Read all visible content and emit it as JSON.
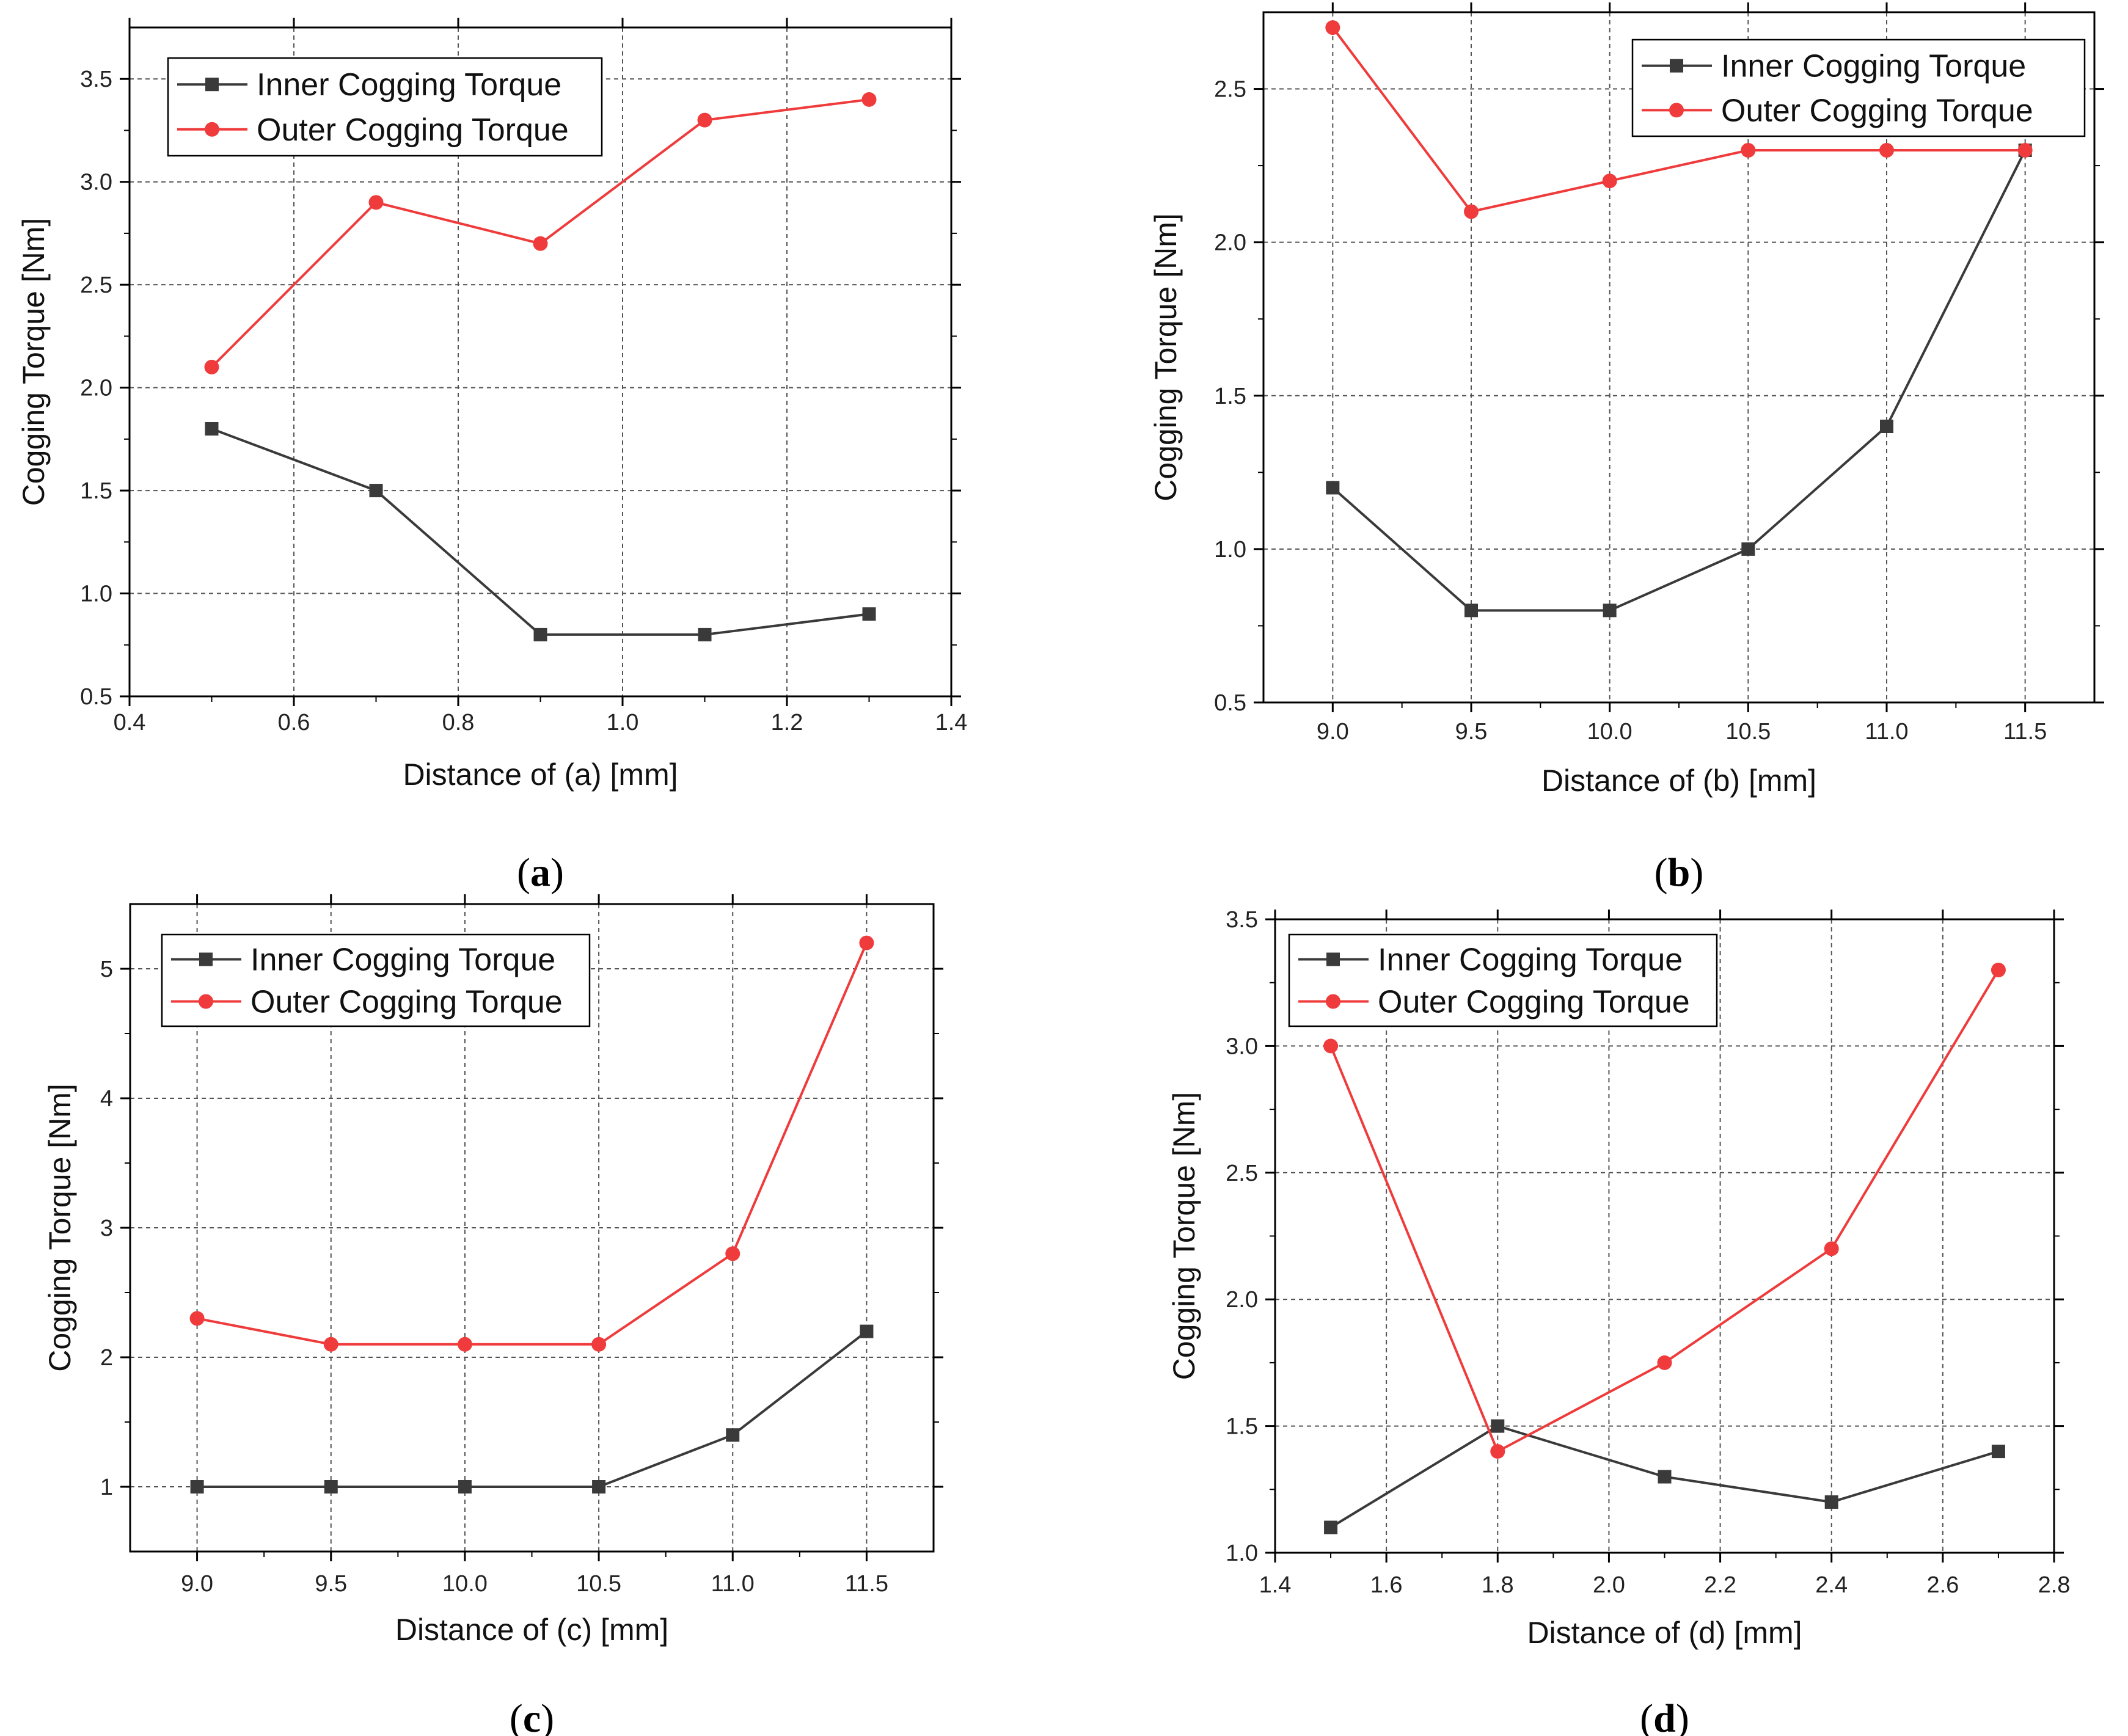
{
  "colors": {
    "inner": "#3a3a3a",
    "outer": "#ef3b3b",
    "grid": "#555555",
    "frame": "#000000"
  },
  "chart_data": [
    {
      "type": "line",
      "caption_letter": "a",
      "xlabel": "Distance of (a) [mm]",
      "ylabel": "Cogging Torque [Nm]",
      "xlim": [
        0.4,
        1.4
      ],
      "ylim": [
        0.5,
        3.75
      ],
      "xticks": [
        0.4,
        0.6,
        0.8,
        1.0,
        1.2,
        1.4
      ],
      "xtick_labels": [
        "0.4",
        "0.6",
        "0.8",
        "1.0",
        "1.2",
        "1.4"
      ],
      "yticks": [
        0.5,
        1.0,
        1.5,
        2.0,
        2.5,
        3.0,
        3.5
      ],
      "ytick_labels": [
        "0.5",
        "1.0",
        "1.5",
        "2.0",
        "2.5",
        "3.0",
        "3.5"
      ],
      "legend_position": "top-left",
      "series": [
        {
          "name": "Inner Cogging Torque",
          "marker": "square",
          "x": [
            0.5,
            0.7,
            0.9,
            1.1,
            1.3
          ],
          "values": [
            1.8,
            1.5,
            0.8,
            0.8,
            0.9
          ]
        },
        {
          "name": "Outer Cogging Torque",
          "marker": "circle",
          "x": [
            0.5,
            0.7,
            0.9,
            1.1,
            1.3
          ],
          "values": [
            2.1,
            2.9,
            2.7,
            3.3,
            3.4
          ]
        }
      ]
    },
    {
      "type": "line",
      "caption_letter": "b",
      "xlabel": "Distance of (b) [mm]",
      "ylabel": "Cogging Torque [Nm]",
      "xlim": [
        8.75,
        11.75
      ],
      "ylim": [
        0.5,
        2.75
      ],
      "xticks": [
        9.0,
        9.5,
        10.0,
        10.5,
        11.0,
        11.5
      ],
      "xtick_labels": [
        "9.0",
        "9.5",
        "10.0",
        "10.5",
        "11.0",
        "11.5"
      ],
      "yticks": [
        0.5,
        1.0,
        1.5,
        2.0,
        2.5
      ],
      "ytick_labels": [
        "0.5",
        "1.0",
        "1.5",
        "2.0",
        "2.5"
      ],
      "legend_position": "top-right",
      "series": [
        {
          "name": "Inner Cogging Torque",
          "marker": "square",
          "x": [
            9.0,
            9.5,
            10.0,
            10.5,
            11.0,
            11.5
          ],
          "values": [
            1.2,
            0.8,
            0.8,
            1.0,
            1.4,
            2.3
          ]
        },
        {
          "name": "Outer Cogging Torque",
          "marker": "circle",
          "x": [
            9.0,
            9.5,
            10.0,
            10.5,
            11.0,
            11.5
          ],
          "values": [
            2.7,
            2.1,
            2.2,
            2.3,
            2.3,
            2.3
          ]
        }
      ]
    },
    {
      "type": "line",
      "caption_letter": "c",
      "xlabel": "Distance of (c) [mm]",
      "ylabel": "Cogging Torque [Nm]",
      "xlim": [
        8.75,
        11.75
      ],
      "ylim": [
        0.5,
        5.5
      ],
      "xticks": [
        9.0,
        9.5,
        10.0,
        10.5,
        11.0,
        11.5
      ],
      "xtick_labels": [
        "9.0",
        "9.5",
        "10.0",
        "10.5",
        "11.0",
        "11.5"
      ],
      "yticks": [
        1,
        2,
        3,
        4,
        5
      ],
      "ytick_labels": [
        "1",
        "2",
        "3",
        "4",
        "5"
      ],
      "legend_position": "top-left",
      "series": [
        {
          "name": "Inner Cogging Torque",
          "marker": "square",
          "x": [
            9.0,
            9.5,
            10.0,
            10.5,
            11.0,
            11.5
          ],
          "values": [
            1.0,
            1.0,
            1.0,
            1.0,
            1.4,
            2.2
          ]
        },
        {
          "name": "Outer Cogging Torque",
          "marker": "circle",
          "x": [
            9.0,
            9.5,
            10.0,
            10.5,
            11.0,
            11.5
          ],
          "values": [
            2.3,
            2.1,
            2.1,
            2.1,
            2.8,
            5.2
          ]
        }
      ]
    },
    {
      "type": "line",
      "caption_letter": "d",
      "xlabel": "Distance of (d) [mm]",
      "ylabel": "Cogging Torque [Nm]",
      "xlim": [
        1.4,
        2.8
      ],
      "ylim": [
        1.0,
        3.5
      ],
      "xticks": [
        1.4,
        1.6,
        1.8,
        2.0,
        2.2,
        2.4,
        2.6,
        2.8
      ],
      "xtick_labels": [
        "1.4",
        "1.6",
        "1.8",
        "2.0",
        "2.2",
        "2.4",
        "2.6",
        "2.8"
      ],
      "yticks": [
        1.0,
        1.5,
        2.0,
        2.5,
        3.0,
        3.5
      ],
      "ytick_labels": [
        "1.0",
        "1.5",
        "2.0",
        "2.5",
        "3.0",
        "3.5"
      ],
      "legend_position": "top-left",
      "series": [
        {
          "name": "Inner Cogging Torque",
          "marker": "square",
          "x": [
            1.5,
            1.8,
            2.1,
            2.4,
            2.7
          ],
          "values": [
            1.1,
            1.5,
            1.3,
            1.2,
            1.4
          ]
        },
        {
          "name": "Outer Cogging Torque",
          "marker": "circle",
          "x": [
            1.5,
            1.8,
            2.1,
            2.4,
            2.7
          ],
          "values": [
            3.0,
            1.4,
            1.75,
            2.2,
            3.3
          ]
        }
      ]
    }
  ]
}
